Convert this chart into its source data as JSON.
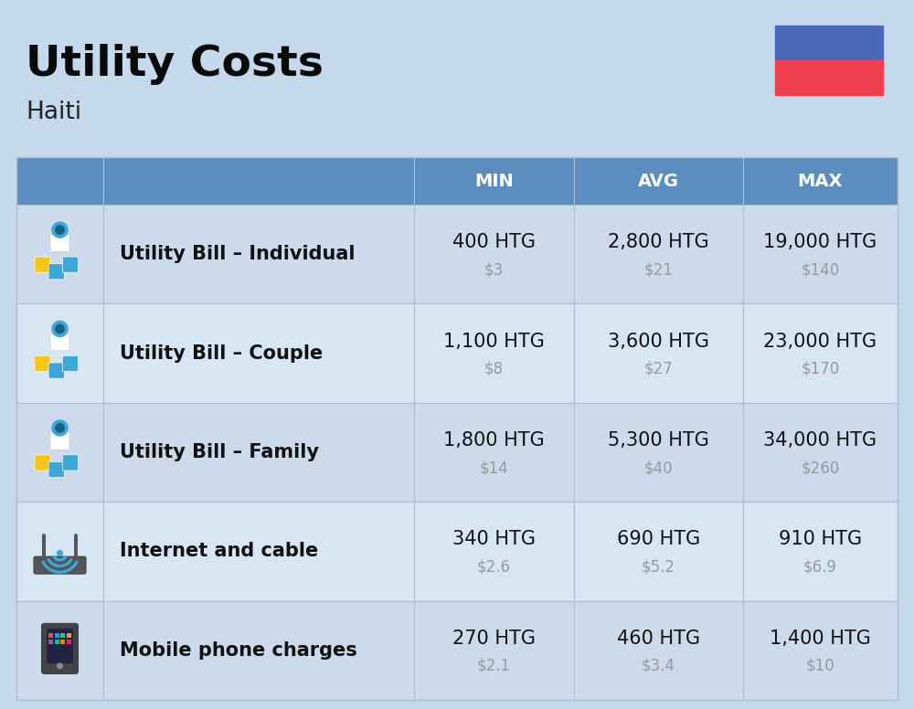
{
  "title": "Utility Costs",
  "subtitle": "Haiti",
  "background_color": "#c5d9ec",
  "header_bg_color": "#5b8dbf",
  "header_text_color": "#ffffff",
  "row_bg_color_even": "#ccdaeb",
  "row_bg_color_odd": "#d8e5f2",
  "cell_border_color": "#aabfd4",
  "columns": [
    "MIN",
    "AVG",
    "MAX"
  ],
  "rows": [
    {
      "label": "Utility Bill – Individual",
      "min_htg": "400 HTG",
      "min_usd": "$3",
      "avg_htg": "2,800 HTG",
      "avg_usd": "$21",
      "max_htg": "19,000 HTG",
      "max_usd": "$140"
    },
    {
      "label": "Utility Bill – Couple",
      "min_htg": "1,100 HTG",
      "min_usd": "$8",
      "avg_htg": "3,600 HTG",
      "avg_usd": "$27",
      "max_htg": "23,000 HTG",
      "max_usd": "$170"
    },
    {
      "label": "Utility Bill – Family",
      "min_htg": "1,800 HTG",
      "min_usd": "$14",
      "avg_htg": "5,300 HTG",
      "avg_usd": "$40",
      "max_htg": "34,000 HTG",
      "max_usd": "$260"
    },
    {
      "label": "Internet and cable",
      "min_htg": "340 HTG",
      "min_usd": "$2.6",
      "avg_htg": "690 HTG",
      "avg_usd": "$5.2",
      "max_htg": "910 HTG",
      "max_usd": "$6.9"
    },
    {
      "label": "Mobile phone charges",
      "min_htg": "270 HTG",
      "min_usd": "$2.1",
      "avg_htg": "460 HTG",
      "avg_usd": "$3.4",
      "max_htg": "1,400 HTG",
      "max_usd": "$10"
    }
  ],
  "htg_fontsize": 15,
  "usd_fontsize": 12,
  "label_fontsize": 15,
  "header_fontsize": 14,
  "title_fontsize": 34,
  "subtitle_fontsize": 19,
  "usd_color": "#999999",
  "label_color": "#111111",
  "htg_color": "#111111",
  "flag_blue": "#4a68b8",
  "flag_red": "#f04050"
}
